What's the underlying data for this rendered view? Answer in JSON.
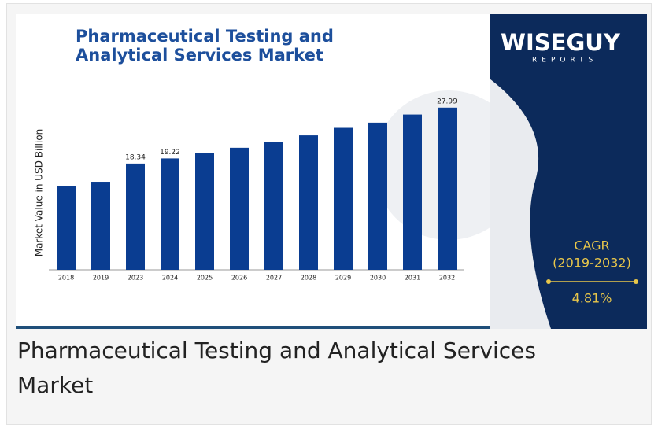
{
  "chart_data": {
    "type": "bar",
    "title": "Pharmaceutical Testing and Analytical Services Market",
    "y_label": "Market Value in USD Billion",
    "categories": [
      "2018",
      "2019",
      "2023",
      "2024",
      "2025",
      "2026",
      "2027",
      "2028",
      "2029",
      "2030",
      "2031",
      "2032"
    ],
    "values": [
      14.4,
      15.2,
      18.34,
      19.22,
      20.1,
      21.06,
      22.1,
      23.2,
      24.5,
      25.4,
      26.8,
      27.99
    ],
    "value_labels": [
      null,
      null,
      "18.34",
      "19.22",
      null,
      null,
      null,
      null,
      null,
      null,
      null,
      "27.99"
    ],
    "color": "#0a3d91",
    "ylim": [
      0,
      30
    ],
    "brand": "WISEGUY",
    "brand_sub": "REPORTS",
    "cagr_label": "CAGR",
    "cagr_period": "(2019-2032)",
    "cagr_value": "4.81%"
  },
  "caption": "Pharmaceutical Testing and Analytical Services Market"
}
